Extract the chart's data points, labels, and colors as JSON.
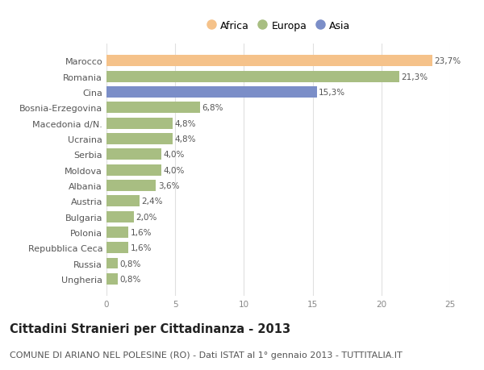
{
  "categories": [
    "Ungheria",
    "Russia",
    "Repubblica Ceca",
    "Polonia",
    "Bulgaria",
    "Austria",
    "Albania",
    "Moldova",
    "Serbia",
    "Ucraina",
    "Macedonia d/N.",
    "Bosnia-Erzegovina",
    "Cina",
    "Romania",
    "Marocco"
  ],
  "values": [
    0.8,
    0.8,
    1.6,
    1.6,
    2.0,
    2.4,
    3.6,
    4.0,
    4.0,
    4.8,
    4.8,
    6.8,
    15.3,
    21.3,
    23.7
  ],
  "colors": [
    "#a8be82",
    "#a8be82",
    "#a8be82",
    "#a8be82",
    "#a8be82",
    "#a8be82",
    "#a8be82",
    "#a8be82",
    "#a8be82",
    "#a8be82",
    "#a8be82",
    "#a8be82",
    "#7b8ec8",
    "#a8be82",
    "#f5c28a"
  ],
  "labels": [
    "0,8%",
    "0,8%",
    "1,6%",
    "1,6%",
    "2,0%",
    "2,4%",
    "3,6%",
    "4,0%",
    "4,0%",
    "4,8%",
    "4,8%",
    "6,8%",
    "15,3%",
    "21,3%",
    "23,7%"
  ],
  "legend": [
    {
      "label": "Africa",
      "color": "#f5c28a"
    },
    {
      "label": "Europa",
      "color": "#a8be82"
    },
    {
      "label": "Asia",
      "color": "#7b8ec8"
    }
  ],
  "xlim": [
    0,
    25
  ],
  "xticks": [
    0,
    5,
    10,
    15,
    20,
    25
  ],
  "title": "Cittadini Stranieri per Cittadinanza - 2013",
  "subtitle": "COMUNE DI ARIANO NEL POLESINE (RO) - Dati ISTAT al 1° gennaio 2013 - TUTTITALIA.IT",
  "bg_color": "#ffffff",
  "bar_height": 0.72,
  "title_fontsize": 10.5,
  "subtitle_fontsize": 8,
  "label_fontsize": 7.5,
  "ytick_fontsize": 8,
  "legend_fontsize": 9
}
